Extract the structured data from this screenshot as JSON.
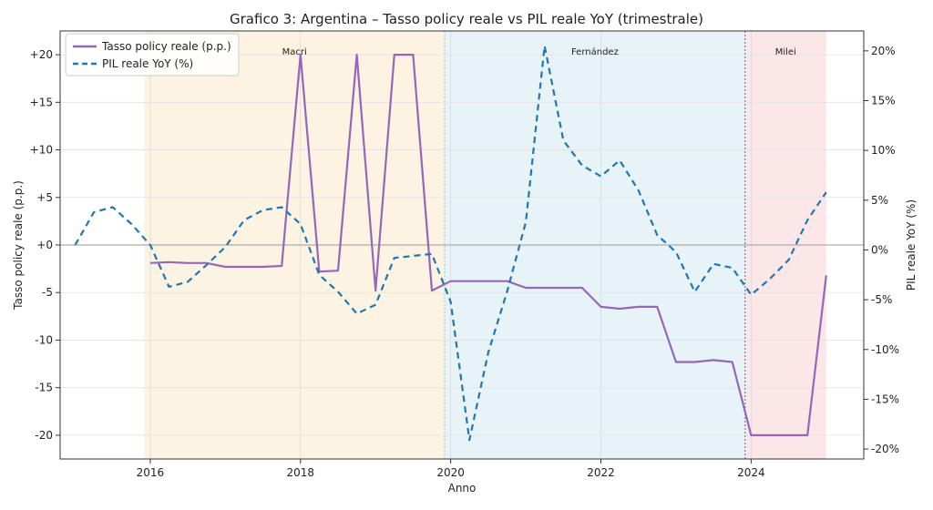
{
  "chart_data": {
    "type": "line",
    "title": "Grafico 3: Argentina – Tasso policy reale vs PIL reale YoY (trimestrale)",
    "xlabel": "Anno",
    "ylabel_left": "Tasso policy reale (p.p.)",
    "ylabel_right": "PIL reale YoY (%)",
    "xlim": [
      2014.8,
      2025.5
    ],
    "ylim_left": [
      -22.5,
      22.5
    ],
    "ylim_right": [
      -21,
      22
    ],
    "x_ticks": [
      2016,
      2018,
      2020,
      2022,
      2024
    ],
    "x_tick_labels": [
      "2016",
      "2018",
      "2020",
      "2022",
      "2024"
    ],
    "y_left_ticks": [
      20,
      15,
      10,
      5,
      0,
      -5,
      -10,
      -15,
      -20
    ],
    "y_left_tick_labels": [
      "+20",
      "+15",
      "+10",
      "+5",
      "+0",
      "-5",
      "-10",
      "-15",
      "-20"
    ],
    "y_right_ticks": [
      20,
      15,
      10,
      5,
      0,
      -5,
      -10,
      -15,
      -20
    ],
    "y_right_tick_labels": [
      "20%",
      "15%",
      "10%",
      "5%",
      "0%",
      "-5%",
      "-10%",
      "-15%",
      "-20%"
    ],
    "grid": true,
    "legend_position": "top-left",
    "regimes": [
      {
        "label": "Macri",
        "start": 2015.92,
        "end": 2019.92,
        "color": "#fdf3e3"
      },
      {
        "label": "Fernández",
        "start": 2019.92,
        "end": 2023.92,
        "color": "#e8f3f8"
      },
      {
        "label": "Milei",
        "start": 2023.92,
        "end": 2025.0,
        "color": "#fbe6e8"
      }
    ],
    "series": [
      {
        "name": "Tasso policy reale (p.p.)",
        "axis": "left",
        "color": "#9467bd",
        "style": "solid",
        "x": [
          2016.0,
          2016.25,
          2016.5,
          2016.75,
          2017.0,
          2017.25,
          2017.5,
          2017.75,
          2018.0,
          2018.25,
          2018.5,
          2018.75,
          2019.0,
          2019.25,
          2019.5,
          2019.75,
          2020.0,
          2020.25,
          2020.5,
          2020.75,
          2021.0,
          2021.25,
          2021.5,
          2021.75,
          2022.0,
          2022.25,
          2022.5,
          2022.75,
          2023.0,
          2023.25,
          2023.5,
          2023.75,
          2024.0,
          2024.25,
          2024.5,
          2024.75,
          2025.0
        ],
        "values": [
          -1.9,
          -1.8,
          -1.9,
          -1.9,
          -2.3,
          -2.3,
          -2.3,
          -2.2,
          20.0,
          -2.8,
          -2.7,
          20.0,
          -4.8,
          20.0,
          20.0,
          -4.8,
          -3.8,
          -3.8,
          -3.8,
          -3.8,
          -4.5,
          -4.5,
          -4.5,
          -4.5,
          -6.5,
          -6.7,
          -6.5,
          -6.5,
          -12.3,
          -12.3,
          -12.1,
          -12.3,
          -20.0,
          -20.0,
          -20.0,
          -20.0,
          -3.2
        ]
      },
      {
        "name": "PIL reale YoY (%)",
        "axis": "right",
        "color": "#1f77b4",
        "style": "dashed",
        "x": [
          2015.0,
          2015.25,
          2015.5,
          2015.75,
          2016.0,
          2016.25,
          2016.5,
          2016.75,
          2017.0,
          2017.25,
          2017.5,
          2017.75,
          2018.0,
          2018.25,
          2018.5,
          2018.75,
          2019.0,
          2019.25,
          2019.5,
          2019.75,
          2020.0,
          2020.25,
          2020.5,
          2020.75,
          2021.0,
          2021.25,
          2021.5,
          2021.75,
          2022.0,
          2022.25,
          2022.5,
          2022.75,
          2023.0,
          2023.25,
          2023.5,
          2023.75,
          2024.0,
          2024.25,
          2024.5,
          2024.75,
          2025.0
        ],
        "values": [
          0.5,
          3.8,
          4.3,
          2.6,
          0.5,
          -3.7,
          -3.2,
          -1.5,
          0.3,
          3.0,
          4.0,
          4.3,
          2.6,
          -2.5,
          -4.2,
          -6.4,
          -5.5,
          -0.8,
          -0.6,
          -0.4,
          -5.2,
          -19.1,
          -10.3,
          -4.2,
          2.8,
          20.5,
          11.0,
          8.5,
          7.4,
          9.0,
          6.0,
          1.5,
          -0.2,
          -4.2,
          -1.4,
          -1.8,
          -4.5,
          -2.9,
          -1.0,
          3.0,
          5.8
        ]
      }
    ]
  }
}
